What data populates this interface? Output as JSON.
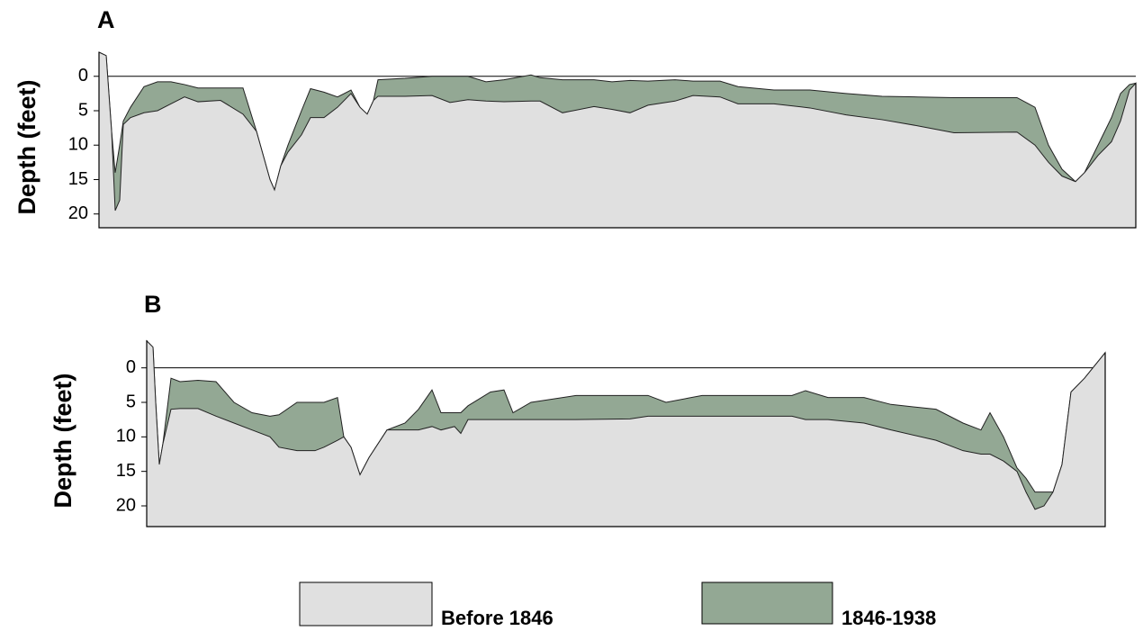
{
  "chart_data": [
    {
      "type": "area",
      "title": "A",
      "y_label": "Depth (feet)",
      "y_inverted": true,
      "xlim": [
        0,
        1152
      ],
      "ylim": [
        -3.5,
        22
      ],
      "yticks": [
        0,
        5,
        10,
        15,
        20
      ],
      "surface": 0,
      "x": [
        0,
        8,
        14,
        18,
        23,
        27,
        35,
        50,
        65,
        80,
        95,
        110,
        135,
        160,
        175,
        190,
        195,
        202,
        210,
        225,
        235,
        250,
        265,
        280,
        290,
        298,
        305,
        310,
        340,
        370,
        390,
        410,
        430,
        450,
        480,
        490,
        515,
        550,
        570,
        590,
        610,
        640,
        660,
        690,
        710,
        750,
        790,
        830,
        870,
        910,
        950,
        1020,
        1040,
        1055,
        1070,
        1085,
        1095,
        1110,
        1125,
        1135,
        1145,
        1152
      ],
      "series": [
        {
          "name": "Before 1846",
          "color": "#e0e0e0",
          "values": [
            -3.5,
            -3,
            8,
            19.5,
            18,
            7,
            6,
            5.3,
            5,
            4,
            3,
            3.7,
            3.5,
            5.5,
            8,
            15,
            16.5,
            13,
            11,
            8.5,
            6,
            6,
            4.5,
            2.5,
            4.5,
            5.5,
            3.5,
            2.9,
            2.9,
            2.8,
            3.8,
            3.4,
            3.6,
            3.7,
            3.6,
            3.6,
            5.3,
            4.4,
            4.8,
            5.3,
            4.2,
            3.6,
            2.8,
            3,
            4,
            4,
            4.6,
            5.6,
            6.3,
            7.2,
            8.2,
            8.1,
            10,
            12.5,
            14.5,
            15.3,
            14,
            11.5,
            9.5,
            6.5,
            2,
            1
          ]
        },
        {
          "name": "1846-1938",
          "color": "#93a894",
          "values": [
            -3.5,
            -3,
            8,
            14,
            10,
            6.5,
            4.5,
            1.5,
            0.8,
            0.8,
            1.2,
            1.7,
            1.7,
            1.7,
            8,
            15,
            16.5,
            13,
            10,
            5,
            1.8,
            2.3,
            3,
            2,
            4.5,
            5.5,
            3.5,
            0.5,
            0.3,
            0,
            0,
            0,
            0.8,
            0.5,
            -0.2,
            0.2,
            0.5,
            0.5,
            0.8,
            0.6,
            0.7,
            0.5,
            0.7,
            0.7,
            1.5,
            2,
            2,
            2.5,
            2.9,
            3,
            3.1,
            3.1,
            4.5,
            10,
            13.5,
            15.3,
            14,
            10,
            6,
            2.5,
            1.2,
            1
          ]
        }
      ]
    },
    {
      "type": "area",
      "title": "B",
      "y_label": "Depth (feet)",
      "y_inverted": true,
      "xlim": [
        0,
        1065
      ],
      "ylim": [
        -4,
        23
      ],
      "yticks": [
        0,
        5,
        10,
        15,
        20
      ],
      "surface": 0,
      "x": [
        0,
        7,
        10,
        14,
        18,
        27,
        37,
        57,
        77,
        97,
        117,
        137,
        147,
        167,
        187,
        197,
        212,
        219,
        227,
        237,
        247,
        267,
        287,
        302,
        317,
        327,
        342,
        349,
        357,
        382,
        397,
        407,
        427,
        477,
        537,
        557,
        577,
        617,
        667,
        717,
        732,
        757,
        797,
        827,
        877,
        907,
        927,
        937,
        952,
        967,
        977,
        987,
        997,
        1007,
        1017,
        1027,
        1042,
        1065
      ],
      "series": [
        {
          "color": "#e0e0e0",
          "values": [
            -3.9,
            -3,
            5,
            14,
            11,
            6,
            5.9,
            5.9,
            7,
            8,
            9,
            10,
            11.5,
            12,
            12,
            11.5,
            10.5,
            10,
            11.5,
            15.5,
            13,
            9,
            9,
            9,
            8.5,
            9,
            8.5,
            9.5,
            7.5,
            7.5,
            7.5,
            7.5,
            7.5,
            7.5,
            7.4,
            7,
            7,
            7,
            7,
            7,
            7.5,
            7.5,
            8,
            9,
            10.5,
            12,
            12.5,
            12.5,
            13.5,
            15,
            18,
            20.5,
            20,
            18,
            14,
            3.5,
            1.5,
            -2.2
          ]
        },
        {
          "color": "#93a894",
          "values": [
            -3.9,
            -3,
            5,
            14,
            11,
            1.5,
            2,
            1.8,
            2,
            5,
            6.5,
            7,
            6.8,
            5,
            5,
            5,
            4.3,
            10,
            11.5,
            15.5,
            13,
            9,
            8,
            6,
            3.2,
            6.5,
            6.5,
            6.5,
            5.5,
            3.5,
            3.2,
            6.5,
            5,
            4,
            4,
            4,
            5,
            4,
            4,
            4,
            3.3,
            4.3,
            4.3,
            5.3,
            6,
            8,
            9,
            6.5,
            10,
            14.5,
            16,
            18,
            18,
            18,
            14,
            3.5,
            1.5,
            -2.2
          ]
        }
      ]
    }
  ]
}
